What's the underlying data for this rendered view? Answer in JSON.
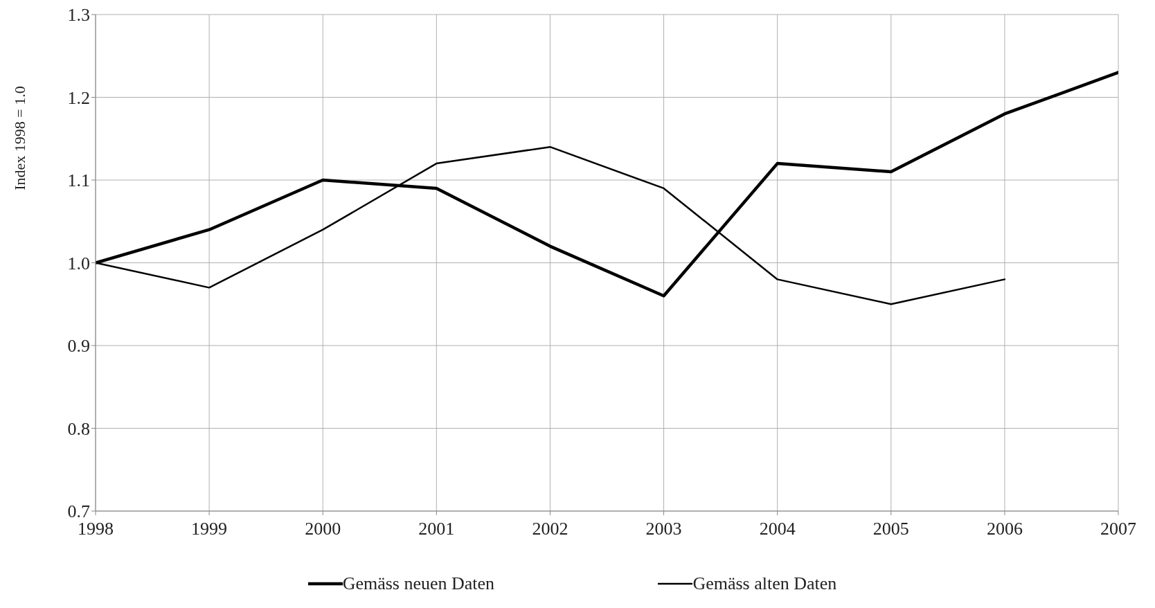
{
  "chart_data": {
    "type": "line",
    "ylabel": "Index 1998 = 1.0",
    "x": [
      1998,
      1999,
      2000,
      2001,
      2002,
      2003,
      2004,
      2005,
      2006,
      2007
    ],
    "series": [
      {
        "name": "Gemäss neuen Daten",
        "color": "#000000",
        "values": [
          1.0,
          1.04,
          1.1,
          1.09,
          1.02,
          0.96,
          1.12,
          1.11,
          1.18,
          1.23
        ]
      },
      {
        "name": "Gemäss alten Daten",
        "color": "#000000",
        "values": [
          1.0,
          0.97,
          1.04,
          1.12,
          1.14,
          1.09,
          0.98,
          0.95,
          0.98,
          null
        ]
      }
    ],
    "xlim": [
      1998,
      2007
    ],
    "xticks": [
      1998,
      1999,
      2000,
      2001,
      2002,
      2003,
      2004,
      2005,
      2006,
      2007
    ],
    "ylim": [
      0.7,
      1.3
    ],
    "yticks": [
      0.7,
      0.8,
      0.9,
      {
        "value": 1.0,
        "label": "1.0"
      },
      1.1,
      1.2,
      1.3
    ],
    "grid": true,
    "legend": "bottom",
    "marker": "none",
    "line_style": "solid"
  }
}
